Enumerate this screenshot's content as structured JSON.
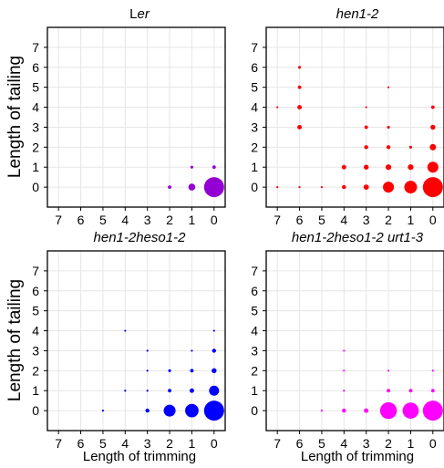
{
  "chart_data": [
    {
      "type": "scatter",
      "title": "Ler",
      "title_italic_part": "er",
      "title_plain_part": "L",
      "color": "#9400D3",
      "xlabel": "",
      "ylabel": "Length of tailing",
      "xlim": [
        7.5,
        -0.5
      ],
      "ylim": [
        -1,
        8
      ],
      "x_ticks": [
        7,
        6,
        5,
        4,
        3,
        2,
        1,
        0
      ],
      "y_ticks": [
        0,
        1,
        2,
        3,
        4,
        5,
        6,
        7
      ],
      "grid": true,
      "points": [
        {
          "x": 0,
          "y": 0,
          "size": 100
        },
        {
          "x": 1,
          "y": 0,
          "size": 12
        },
        {
          "x": 2,
          "y": 0,
          "size": 3
        },
        {
          "x": 0,
          "y": 1,
          "size": 3
        },
        {
          "x": 1,
          "y": 1,
          "size": 2
        }
      ]
    },
    {
      "type": "scatter",
      "title": "hen1-2",
      "color": "#FF0000",
      "xlabel": "",
      "ylabel": "",
      "xlim": [
        7.5,
        -0.5
      ],
      "ylim": [
        -1,
        8
      ],
      "x_ticks": [
        7,
        6,
        5,
        4,
        3,
        2,
        1,
        0
      ],
      "y_ticks": [
        0,
        1,
        2,
        3,
        4,
        5,
        6,
        7
      ],
      "grid": true,
      "points": [
        {
          "x": 0,
          "y": 0,
          "size": 100
        },
        {
          "x": 1,
          "y": 0,
          "size": 40
        },
        {
          "x": 2,
          "y": 0,
          "size": 30
        },
        {
          "x": 3,
          "y": 0,
          "size": 7
        },
        {
          "x": 4,
          "y": 0,
          "size": 4
        },
        {
          "x": 5,
          "y": 0,
          "size": 1
        },
        {
          "x": 6,
          "y": 0,
          "size": 1
        },
        {
          "x": 7,
          "y": 0,
          "size": 1
        },
        {
          "x": 0,
          "y": 1,
          "size": 30
        },
        {
          "x": 1,
          "y": 1,
          "size": 8
        },
        {
          "x": 2,
          "y": 1,
          "size": 8
        },
        {
          "x": 3,
          "y": 1,
          "size": 6
        },
        {
          "x": 4,
          "y": 1,
          "size": 5
        },
        {
          "x": 0,
          "y": 2,
          "size": 10
        },
        {
          "x": 1,
          "y": 2,
          "size": 2
        },
        {
          "x": 2,
          "y": 2,
          "size": 4
        },
        {
          "x": 3,
          "y": 2,
          "size": 4
        },
        {
          "x": 0,
          "y": 3,
          "size": 6
        },
        {
          "x": 2,
          "y": 3,
          "size": 2
        },
        {
          "x": 3,
          "y": 3,
          "size": 3
        },
        {
          "x": 6,
          "y": 3,
          "size": 5
        },
        {
          "x": 0,
          "y": 4,
          "size": 3
        },
        {
          "x": 3,
          "y": 4,
          "size": 1
        },
        {
          "x": 6,
          "y": 4,
          "size": 5
        },
        {
          "x": 7,
          "y": 4,
          "size": 1
        },
        {
          "x": 2,
          "y": 5,
          "size": 1
        },
        {
          "x": 6,
          "y": 5,
          "size": 3
        },
        {
          "x": 6,
          "y": 6,
          "size": 2
        }
      ]
    },
    {
      "type": "scatter",
      "title": "hen1-2heso1-2",
      "color": "#0000FF",
      "xlabel": "Length of trimming",
      "ylabel": "Length of tailing",
      "xlim": [
        7.5,
        -0.5
      ],
      "ylim": [
        -1,
        8
      ],
      "x_ticks": [
        7,
        6,
        5,
        4,
        3,
        2,
        1,
        0
      ],
      "y_ticks": [
        0,
        1,
        2,
        3,
        4,
        5,
        6,
        7
      ],
      "grid": true,
      "points": [
        {
          "x": 0,
          "y": 0,
          "size": 100
        },
        {
          "x": 1,
          "y": 0,
          "size": 45
        },
        {
          "x": 2,
          "y": 0,
          "size": 35
        },
        {
          "x": 3,
          "y": 0,
          "size": 4
        },
        {
          "x": 5,
          "y": 0,
          "size": 1
        },
        {
          "x": 0,
          "y": 1,
          "size": 25
        },
        {
          "x": 1,
          "y": 1,
          "size": 5
        },
        {
          "x": 2,
          "y": 1,
          "size": 3
        },
        {
          "x": 3,
          "y": 1,
          "size": 1
        },
        {
          "x": 4,
          "y": 1,
          "size": 1
        },
        {
          "x": 0,
          "y": 2,
          "size": 6
        },
        {
          "x": 1,
          "y": 2,
          "size": 3
        },
        {
          "x": 2,
          "y": 2,
          "size": 2
        },
        {
          "x": 3,
          "y": 2,
          "size": 1
        },
        {
          "x": 0,
          "y": 3,
          "size": 4
        },
        {
          "x": 1,
          "y": 3,
          "size": 1
        },
        {
          "x": 3,
          "y": 3,
          "size": 1
        },
        {
          "x": 0,
          "y": 4,
          "size": 1
        },
        {
          "x": 4,
          "y": 4,
          "size": 1
        }
      ]
    },
    {
      "type": "scatter",
      "title": "hen1-2heso1-2 urt1-3",
      "color": "#FF00FF",
      "xlabel": "Length of trimming",
      "ylabel": "",
      "xlim": [
        7.5,
        -0.5
      ],
      "ylim": [
        -1,
        8
      ],
      "x_ticks": [
        7,
        6,
        5,
        4,
        3,
        2,
        1,
        0
      ],
      "y_ticks": [
        0,
        1,
        2,
        3,
        4,
        5,
        6,
        7
      ],
      "grid": true,
      "points": [
        {
          "x": 0,
          "y": 0,
          "size": 100
        },
        {
          "x": 1,
          "y": 0,
          "size": 65
        },
        {
          "x": 2,
          "y": 0,
          "size": 70
        },
        {
          "x": 3,
          "y": 0,
          "size": 5
        },
        {
          "x": 4,
          "y": 0,
          "size": 4
        },
        {
          "x": 5,
          "y": 0,
          "size": 1
        },
        {
          "x": 0,
          "y": 1,
          "size": 3
        },
        {
          "x": 1,
          "y": 1,
          "size": 3
        },
        {
          "x": 2,
          "y": 1,
          "size": 3
        },
        {
          "x": 4,
          "y": 1,
          "size": 1
        },
        {
          "x": 0,
          "y": 2,
          "size": 1
        },
        {
          "x": 2,
          "y": 2,
          "size": 1
        },
        {
          "x": 4,
          "y": 2,
          "size": 1
        },
        {
          "x": 4,
          "y": 3,
          "size": 1
        }
      ]
    }
  ]
}
